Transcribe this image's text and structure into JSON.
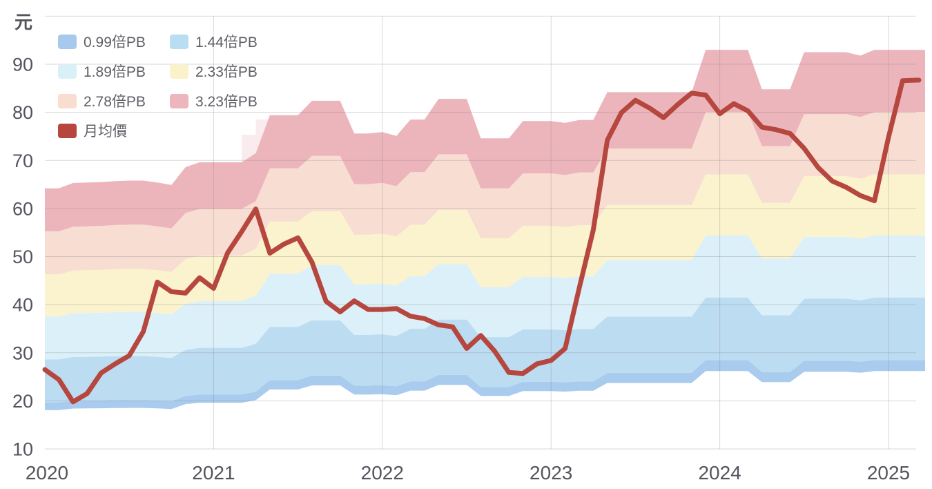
{
  "y_axis": {
    "unit_label": "元",
    "tick_labels": [
      "10",
      "20",
      "30",
      "40",
      "50",
      "60",
      "70",
      "80",
      "90"
    ],
    "tick_values": [
      10,
      20,
      30,
      40,
      50,
      60,
      70,
      80,
      90
    ]
  },
  "x_axis": {
    "tick_labels": [
      "2020",
      "2021",
      "2022",
      "2023",
      "2024",
      "2025"
    ]
  },
  "legend": {
    "band_items": [
      {
        "label": "0.99倍PB",
        "color": "#a6c9ed"
      },
      {
        "label": "1.44倍PB",
        "color": "#b9def2"
      },
      {
        "label": "1.89倍PB",
        "color": "#daf0f8"
      },
      {
        "label": "2.33倍PB",
        "color": "#faf2ca"
      },
      {
        "label": "2.78倍PB",
        "color": "#f8ddd1"
      },
      {
        "label": "3.23倍PB",
        "color": "#edb5bc"
      }
    ],
    "line_item": {
      "label": "月均價",
      "color": "#b5473f"
    }
  },
  "chart_data": {
    "type": "area",
    "subtype": "pb-river-chart (stacked price-to-book valuation bands + monthly average price line)",
    "ylabel": "元",
    "ylim": [
      10,
      100
    ],
    "grid": true,
    "legend_position": "top-left",
    "x_months": [
      "2020-01",
      "2020-02",
      "2020-03",
      "2020-04",
      "2020-05",
      "2020-06",
      "2020-07",
      "2020-08",
      "2020-09",
      "2020-10",
      "2020-11",
      "2020-12",
      "2021-01",
      "2021-02",
      "2021-03",
      "2021-04",
      "2021-05",
      "2021-06",
      "2021-07",
      "2021-08",
      "2021-09",
      "2021-10",
      "2021-11",
      "2021-12",
      "2022-01",
      "2022-02",
      "2022-03",
      "2022-04",
      "2022-05",
      "2022-06",
      "2022-07",
      "2022-08",
      "2022-09",
      "2022-10",
      "2022-11",
      "2022-12",
      "2023-01",
      "2023-02",
      "2023-03",
      "2023-04",
      "2023-05",
      "2023-06",
      "2023-07",
      "2023-08",
      "2023-09",
      "2023-10",
      "2023-11",
      "2023-12",
      "2024-01",
      "2024-02",
      "2024-03",
      "2024-04",
      "2024-05",
      "2024-06",
      "2024-07",
      "2024-08",
      "2024-09",
      "2024-10",
      "2024-11",
      "2024-12",
      "2025-01",
      "2025-02",
      "2025-03"
    ],
    "price_series": {
      "name": "月均價",
      "color": "#b5473f",
      "values": [
        26.5,
        24.4,
        19.8,
        21.5,
        25.8,
        27.7,
        29.4,
        34.4,
        44.7,
        42.7,
        42.4,
        45.6,
        43.4,
        50.8,
        55.2,
        59.9,
        50.7,
        52.6,
        53.9,
        48.8,
        40.7,
        38.5,
        40.8,
        39.0,
        39.0,
        39.2,
        37.6,
        37.1,
        35.8,
        35.4,
        30.9,
        33.6,
        30.3,
        25.9,
        25.7,
        27.7,
        28.4,
        30.9,
        43.4,
        55.5,
        74.2,
        79.9,
        82.5,
        80.9,
        78.9,
        81.6,
        84.0,
        83.6,
        79.7,
        81.8,
        80.3,
        76.9,
        76.4,
        75.6,
        72.5,
        68.5,
        65.7,
        64.4,
        62.7,
        61.6,
        74.8,
        86.6,
        86.7
      ]
    },
    "pb_top_line": {
      "name": "3.23倍PB",
      "values": [
        64.2,
        64.2,
        65.3,
        65.4,
        65.5,
        65.7,
        65.8,
        65.8,
        65.4,
        64.9,
        68.6,
        69.6,
        69.6,
        69.6,
        69.6,
        71.5,
        79.4,
        79.4,
        79.4,
        82.4,
        82.4,
        82.4,
        75.6,
        75.6,
        75.9,
        75.1,
        78.5,
        78.5,
        82.8,
        82.8,
        82.8,
        74.6,
        74.6,
        74.6,
        78.2,
        78.2,
        78.2,
        77.8,
        78.4,
        78.4,
        84.2,
        84.2,
        84.2,
        84.2,
        84.2,
        84.2,
        84.2,
        93.0,
        93.0,
        93.0,
        93.0,
        84.8,
        84.8,
        84.8,
        92.5,
        92.5,
        92.5,
        92.5,
        91.8,
        93.0,
        93.0,
        93.0,
        93.0
      ]
    },
    "pb_multiples": [
      0.99,
      1.44,
      1.89,
      2.33,
      2.78,
      3.23
    ],
    "band_bottom_multiple": 0.91,
    "derivation_note": "each PB boundary line = pb_top_line values × (multiple / 3.23); band k fills between boundary k and k+1",
    "band_colors": [
      "#a8cbee",
      "#bcdcf2",
      "#dbf0f8",
      "#fbf3cd",
      "#f8ddd2",
      "#ecb5bc"
    ],
    "ghost_overlay": {
      "note": "faint pale wedge above 3.23PB band during 2021-03..2021-05 transition",
      "vertices_month_value": [
        [
          14,
          69.6
        ],
        [
          14,
          75.3
        ],
        [
          15,
          75.3
        ],
        [
          15,
          78.5
        ],
        [
          16,
          78.5
        ],
        [
          16,
          79.4
        ],
        [
          15,
          71.5
        ]
      ],
      "color": "rgba(236,181,188,0.25)"
    }
  },
  "colors": {
    "axis_text": "#54545c",
    "legend_text": "#5e5e66",
    "gridline": "rgba(138,132,132,0.32)"
  }
}
